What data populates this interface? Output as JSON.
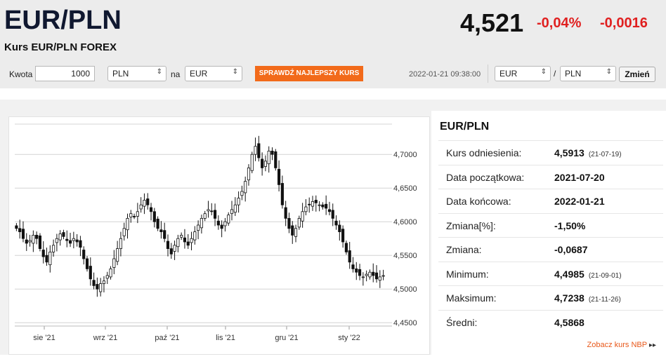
{
  "header": {
    "pair": "EUR/PLN",
    "subtitle": "Kurs EUR/PLN FOREX",
    "rate": "4,521",
    "change_pct": "-0,04%",
    "change_abs": "-0,0016"
  },
  "converter": {
    "amount_label": "Kwota",
    "amount_value": "1000",
    "from_currency": "PLN",
    "to_label": "na",
    "to_currency": "EUR",
    "check_button": "SPRAWDŹ NAJLEPSZY KURS",
    "timestamp": "2022-01-21 09:38:00",
    "pair_base": "EUR",
    "pair_sep": "/",
    "pair_quote": "PLN",
    "change_button": "Zmień"
  },
  "colors": {
    "accent_orange": "#f26a1a",
    "negative_red": "#e02020",
    "candle": "#111111"
  },
  "icons": {
    "select_arrows": "updown-arrows-icon",
    "nbp_link": "double-chevron-right-icon"
  },
  "chart_data": {
    "type": "candlestick",
    "x_labels": [
      "sie '21",
      "wrz '21",
      "paź '21",
      "lis '21",
      "gru '21",
      "sty '22"
    ],
    "y_ticks": [
      "4,7000",
      "4,6500",
      "4,6000",
      "4,5500",
      "4,5000",
      "4,4500"
    ],
    "ylim": [
      4.445,
      4.745
    ],
    "date_range": [
      "2021-07-20",
      "2022-01-21"
    ],
    "grid": true,
    "close_series": [
      4.59,
      4.585,
      4.575,
      4.568,
      4.572,
      4.58,
      4.575,
      4.56,
      4.548,
      4.54,
      4.555,
      4.565,
      4.575,
      4.582,
      4.578,
      4.572,
      4.568,
      4.575,
      4.57,
      4.562,
      4.545,
      4.53,
      4.515,
      4.505,
      4.5,
      4.508,
      4.512,
      4.52,
      4.53,
      4.545,
      4.56,
      4.575,
      4.59,
      4.605,
      4.612,
      4.608,
      4.615,
      4.625,
      4.632,
      4.625,
      4.615,
      4.6,
      4.59,
      4.585,
      4.575,
      4.56,
      4.552,
      4.565,
      4.575,
      4.58,
      4.57,
      4.565,
      4.575,
      4.585,
      4.595,
      4.605,
      4.612,
      4.618,
      4.615,
      4.605,
      4.595,
      4.59,
      4.6,
      4.61,
      4.618,
      4.625,
      4.635,
      4.645,
      4.66,
      4.68,
      4.7,
      4.712,
      4.695,
      4.68,
      4.69,
      4.705,
      4.7,
      4.68,
      4.655,
      4.625,
      4.605,
      4.59,
      4.58,
      4.59,
      4.605,
      4.615,
      4.622,
      4.625,
      4.63,
      4.628,
      4.625,
      4.622,
      4.62,
      4.615,
      4.605,
      4.595,
      4.585,
      4.57,
      4.555,
      4.54,
      4.53,
      4.525,
      4.52,
      4.518,
      4.522,
      4.525,
      4.52,
      4.515,
      4.518,
      4.52
    ]
  },
  "stats": {
    "title": "EUR/PLN",
    "rows": [
      {
        "label": "Kurs odniesienia:",
        "value": "4,5913",
        "date": "(21-07-19)"
      },
      {
        "label": "Data początkowa:",
        "value": "2021-07-20",
        "date": ""
      },
      {
        "label": "Data końcowa:",
        "value": "2022-01-21",
        "date": ""
      },
      {
        "label": "Zmiana[%]:",
        "value": "-1,50%",
        "date": ""
      },
      {
        "label": "Zmiana:",
        "value": "-0,0687",
        "date": ""
      },
      {
        "label": "Minimum:",
        "value": "4,4985",
        "date": "(21-09-01)"
      },
      {
        "label": "Maksimum:",
        "value": "4,7238",
        "date": "(21-11-26)"
      },
      {
        "label": "Średni:",
        "value": "4,5868",
        "date": ""
      }
    ],
    "nbp_link": "Zobacz kurs NBP"
  }
}
